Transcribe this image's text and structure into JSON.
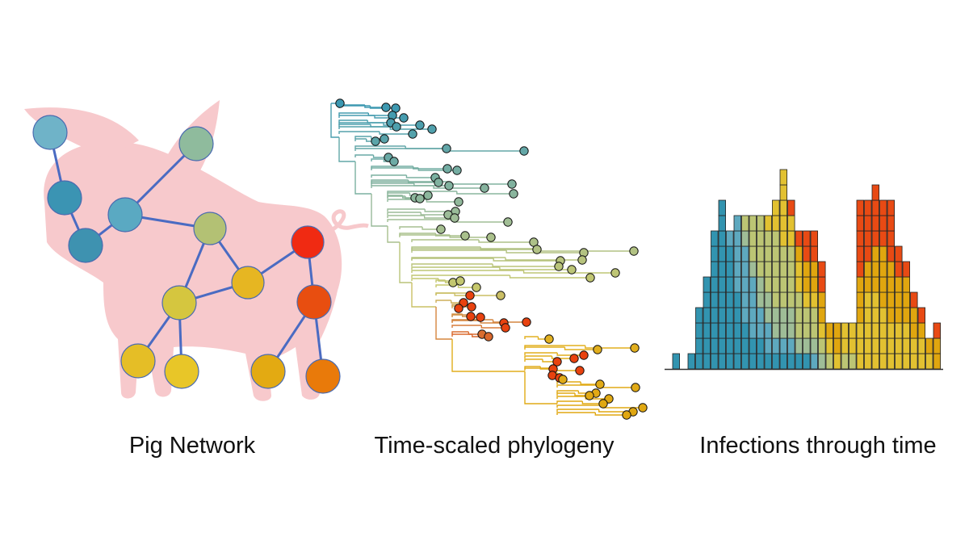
{
  "labels": {
    "pig_network": "Pig Network",
    "phylogeny": "Time-scaled phylogeny",
    "infections": "Infections through time"
  },
  "colors": {
    "pig_silhouette": "#f7c9cc",
    "network_edge": "#4a6bc2",
    "tree_early": "#3b98b2",
    "tree_mid": "#c8c86a",
    "tree_late": "#e04a1a",
    "bar_stroke": "#222222"
  },
  "bar_segment_colors": [
    "#3294b0",
    "#5ea9bf",
    "#9fbd97",
    "#bcc574",
    "#e2c131",
    "#e0a60f",
    "#e84a14"
  ],
  "network_nodes": [
    {
      "id": 1,
      "color": "#6fb3c8"
    },
    {
      "id": 2,
      "color": "#8fbb9d"
    },
    {
      "id": 3,
      "color": "#3b94b3"
    },
    {
      "id": 4,
      "color": "#5aa9c2"
    },
    {
      "id": 5,
      "color": "#3e92b0"
    },
    {
      "id": 6,
      "color": "#b3c174"
    },
    {
      "id": 7,
      "color": "#f02a12"
    },
    {
      "id": 8,
      "color": "#e6b622"
    },
    {
      "id": 9,
      "color": "#d5c63f"
    },
    {
      "id": 10,
      "color": "#e84e10"
    },
    {
      "id": 11,
      "color": "#e5be26"
    },
    {
      "id": 12,
      "color": "#e8c628"
    },
    {
      "id": 13,
      "color": "#e3aa12"
    },
    {
      "id": 14,
      "color": "#e97a0a"
    }
  ],
  "network_edges": [
    [
      1,
      3
    ],
    [
      3,
      5
    ],
    [
      4,
      5
    ],
    [
      2,
      4
    ],
    [
      4,
      6
    ],
    [
      6,
      9
    ],
    [
      6,
      8
    ],
    [
      9,
      8
    ],
    [
      8,
      7
    ],
    [
      7,
      10
    ],
    [
      9,
      11
    ],
    [
      9,
      12
    ],
    [
      10,
      13
    ],
    [
      10,
      14
    ]
  ],
  "infection_bars": [
    [
      1,
      0,
      0,
      0,
      0,
      0,
      0
    ],
    [
      0,
      0,
      0,
      0,
      0,
      0,
      0
    ],
    [
      1,
      0,
      0,
      0,
      0,
      0,
      0
    ],
    [
      4,
      0,
      0,
      0,
      0,
      0,
      0
    ],
    [
      6,
      0,
      0,
      0,
      0,
      0,
      0
    ],
    [
      9,
      0,
      0,
      0,
      0,
      0,
      0
    ],
    [
      11,
      0,
      0,
      0,
      0,
      0,
      0
    ],
    [
      8,
      1,
      0,
      0,
      0,
      0,
      0
    ],
    [
      5,
      5,
      0,
      0,
      0,
      0,
      0
    ],
    [
      3,
      5,
      1,
      1,
      0,
      0,
      0
    ],
    [
      2,
      4,
      1,
      3,
      0,
      0,
      0
    ],
    [
      2,
      2,
      2,
      4,
      0,
      0,
      0
    ],
    [
      1,
      2,
      2,
      4,
      1,
      0,
      0
    ],
    [
      1,
      1,
      2,
      5,
      2,
      0,
      0
    ],
    [
      1,
      1,
      2,
      4,
      5,
      0,
      0
    ],
    [
      1,
      1,
      2,
      4,
      2,
      0,
      1
    ],
    [
      1,
      0,
      1,
      3,
      2,
      1,
      1
    ],
    [
      1,
      0,
      1,
      2,
      1,
      2,
      2
    ],
    [
      0,
      1,
      1,
      2,
      1,
      2,
      2
    ],
    [
      0,
      0,
      1,
      1,
      1,
      2,
      2
    ],
    [
      0,
      0,
      0,
      1,
      1,
      1,
      0
    ],
    [
      0,
      0,
      0,
      0,
      1,
      2,
      0
    ],
    [
      0,
      0,
      0,
      1,
      2,
      0,
      0
    ],
    [
      0,
      0,
      0,
      1,
      2,
      0,
      0
    ],
    [
      0,
      0,
      0,
      0,
      3,
      3,
      5
    ],
    [
      0,
      0,
      0,
      0,
      5,
      2,
      4
    ],
    [
      0,
      0,
      0,
      0,
      5,
      3,
      4
    ],
    [
      0,
      0,
      0,
      0,
      4,
      4,
      3
    ],
    [
      0,
      0,
      0,
      0,
      3,
      4,
      4
    ],
    [
      0,
      0,
      0,
      0,
      3,
      3,
      2
    ],
    [
      0,
      0,
      0,
      0,
      3,
      3,
      1
    ],
    [
      0,
      0,
      0,
      0,
      2,
      2,
      1
    ],
    [
      0,
      0,
      0,
      0,
      2,
      1,
      1
    ],
    [
      0,
      0,
      0,
      0,
      1,
      1,
      0
    ],
    [
      0,
      0,
      0,
      0,
      0,
      2,
      1
    ]
  ]
}
